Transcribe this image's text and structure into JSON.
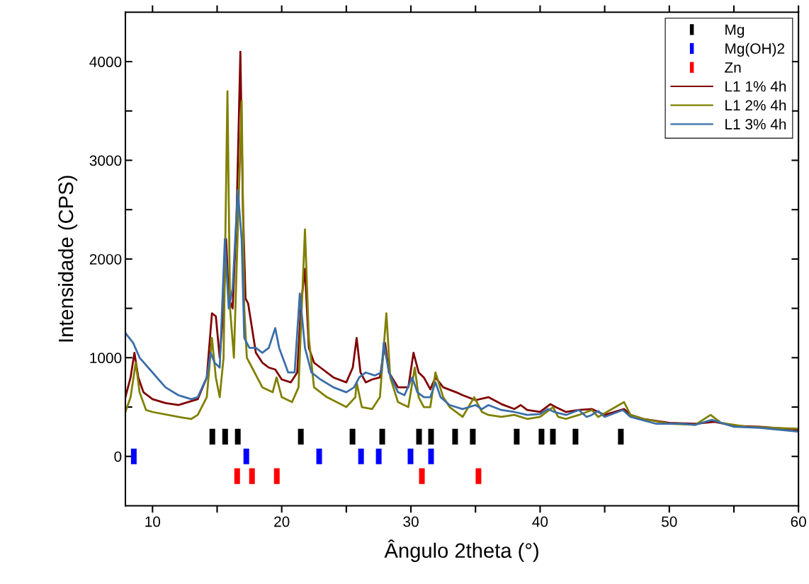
{
  "chart_data": {
    "type": "line",
    "xlabel": "Ângulo 2theta (°)",
    "ylabel": "Intensidade (CPS)",
    "xlim": [
      7.9,
      60
    ],
    "ylim": [
      -500,
      4500
    ],
    "xticks": [
      10,
      {
        "value": 15,
        "label": null
      },
      20,
      {
        "value": 25,
        "label": null
      },
      30,
      {
        "value": 35,
        "label": null
      },
      40,
      {
        "value": 45,
        "label": null
      },
      50,
      {
        "value": 55,
        "label": null
      },
      60
    ],
    "yticks": [
      0,
      {
        "value": 500,
        "label": null
      },
      1000,
      {
        "value": 1500,
        "label": null
      },
      2000,
      {
        "value": 2500,
        "label": null
      },
      3000,
      {
        "value": 3500,
        "label": null
      },
      4000
    ],
    "grid": false,
    "legend": "top right",
    "series": [
      {
        "name": "Mg",
        "type": "scatter",
        "marker": "square",
        "color": "#000000",
        "x": [
          14.63,
          15.62,
          16.6,
          21.48,
          25.48,
          27.78,
          30.63,
          31.56,
          33.42,
          34.79,
          38.19,
          40.11,
          40.99,
          42.74,
          46.25
        ],
        "values": [
          200,
          200,
          200,
          200,
          200,
          200,
          200,
          200,
          200,
          200,
          200,
          200,
          200,
          200,
          200
        ]
      },
      {
        "name": "Mg(OH)2",
        "type": "scatter",
        "marker": "square",
        "color": "#0000ff",
        "x": [
          8.55,
          17.26,
          22.9,
          26.14,
          27.51,
          29.97,
          31.56
        ],
        "values": [
          0,
          0,
          0,
          0,
          0,
          0,
          0
        ]
      },
      {
        "name": "Zn",
        "type": "scatter",
        "marker": "square",
        "color": "#ff0000",
        "x": [
          16.55,
          17.7,
          19.62,
          30.85,
          35.23
        ],
        "values": [
          -200,
          -200,
          -200,
          -200,
          -200
        ]
      },
      {
        "name": "L1 1% 4h",
        "color": "#800000",
        "x": [
          7.9,
          8.3,
          8.6,
          8.9,
          9.3,
          10,
          11,
          12,
          13,
          13.5,
          14.2,
          14.6,
          14.9,
          15.2,
          15.5,
          15.7,
          15.9,
          16.2,
          16.5,
          16.8,
          17.0,
          17.2,
          17.4,
          17.7,
          18.0,
          18.5,
          19.0,
          19.5,
          20,
          20.7,
          21.2,
          21.5,
          21.8,
          22.1,
          22.5,
          23,
          24,
          25,
          25.5,
          25.8,
          26.1,
          26.5,
          27,
          27.6,
          28.0,
          28.3,
          29,
          29.8,
          30.2,
          30.6,
          31,
          31.5,
          31.9,
          32.5,
          33.5,
          34,
          35,
          36,
          37,
          38,
          38.5,
          39,
          40,
          40.8,
          41.2,
          42,
          43,
          44,
          45,
          46.5,
          47,
          48,
          50,
          52,
          53.5,
          55,
          57,
          60
        ],
        "values": [
          600,
          800,
          1050,
          800,
          650,
          580,
          540,
          520,
          560,
          580,
          800,
          1450,
          1420,
          1000,
          1500,
          2200,
          1600,
          1500,
          2400,
          4100,
          2500,
          1600,
          1550,
          1300,
          1050,
          950,
          900,
          880,
          780,
          750,
          850,
          1550,
          1900,
          1100,
          950,
          900,
          800,
          750,
          900,
          1200,
          850,
          750,
          780,
          800,
          1150,
          850,
          700,
          700,
          1050,
          850,
          800,
          680,
          800,
          700,
          650,
          620,
          570,
          600,
          530,
          480,
          520,
          470,
          450,
          530,
          500,
          450,
          470,
          480,
          420,
          480,
          420,
          380,
          340,
          330,
          350,
          310,
          300,
          270
        ]
      },
      {
        "name": "L1 2% 4h",
        "color": "#808000",
        "x": [
          7.9,
          8.3,
          8.7,
          9.0,
          9.5,
          10,
          12,
          13,
          13.5,
          14.2,
          14.6,
          14.9,
          15.2,
          15.5,
          15.8,
          16.0,
          16.3,
          16.6,
          16.9,
          17.1,
          17.3,
          17.7,
          18.5,
          19.3,
          19.6,
          20,
          20.8,
          21.3,
          21.8,
          22.1,
          22.5,
          23.5,
          25,
          25.7,
          25.8,
          26.2,
          27,
          27.6,
          28.1,
          28.4,
          29,
          29.8,
          30.3,
          30.6,
          31,
          31.5,
          31.9,
          32.5,
          33,
          34,
          34.9,
          35.5,
          36,
          37,
          38,
          39,
          40,
          41,
          41.4,
          42,
          43,
          44,
          44.5,
          46.5,
          47,
          48,
          50,
          52,
          53.2,
          54,
          56,
          58,
          60
        ],
        "values": [
          450,
          600,
          950,
          650,
          470,
          450,
          400,
          380,
          420,
          600,
          1200,
          800,
          600,
          1000,
          3700,
          1500,
          1000,
          2300,
          3600,
          1500,
          1000,
          900,
          700,
          650,
          800,
          600,
          550,
          700,
          2300,
          1200,
          700,
          600,
          500,
          600,
          750,
          500,
          480,
          600,
          1450,
          800,
          550,
          500,
          900,
          600,
          500,
          500,
          850,
          600,
          500,
          400,
          600,
          450,
          420,
          400,
          420,
          380,
          400,
          500,
          400,
          380,
          420,
          470,
          400,
          550,
          420,
          380,
          330,
          320,
          420,
          340,
          300,
          290,
          280
        ]
      },
      {
        "name": "L1 3% 4h",
        "color": "#3b6ea8",
        "x": [
          7.9,
          8.5,
          9,
          10,
          11,
          12,
          13,
          13.5,
          14.2,
          14.5,
          14.8,
          15.2,
          15.6,
          15.9,
          16.2,
          16.6,
          16.9,
          17.1,
          17.5,
          18,
          18.5,
          19.0,
          19.5,
          19.8,
          20.5,
          21.0,
          21.4,
          21.8,
          22.3,
          23,
          24,
          25,
          25.6,
          26,
          26.5,
          27.2,
          27.7,
          27.9,
          28.3,
          29,
          29.5,
          30.1,
          30.5,
          31,
          31.5,
          31.9,
          32.3,
          33,
          34,
          35,
          35.5,
          36,
          37,
          38,
          39,
          40,
          40.6,
          41.1,
          42,
          43,
          43.6,
          44,
          44.5,
          45,
          46.4,
          47,
          49,
          51,
          52,
          53.3,
          55,
          57,
          60
        ],
        "values": [
          1250,
          1150,
          1000,
          850,
          700,
          620,
          580,
          600,
          800,
          1050,
          950,
          900,
          2200,
          1500,
          1700,
          2700,
          2200,
          1200,
          1100,
          1100,
          1050,
          1100,
          1300,
          1100,
          850,
          850,
          1650,
          1100,
          850,
          780,
          700,
          650,
          700,
          800,
          850,
          820,
          850,
          1150,
          850,
          650,
          620,
          800,
          650,
          600,
          600,
          750,
          600,
          520,
          480,
          520,
          480,
          520,
          470,
          450,
          420,
          430,
          480,
          450,
          420,
          470,
          400,
          420,
          460,
          400,
          470,
          400,
          330,
          330,
          320,
          370,
          300,
          290,
          250
        ]
      }
    ]
  }
}
